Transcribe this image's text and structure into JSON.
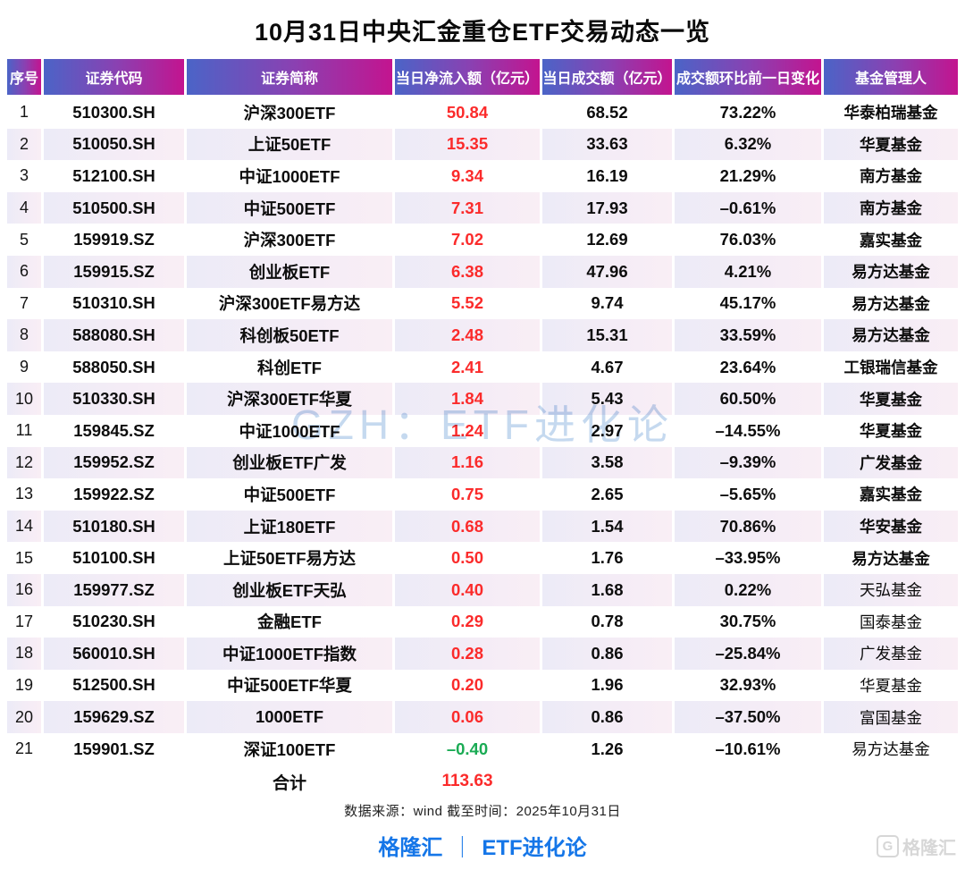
{
  "title": "10月31日中央汇金重仓ETF交易动态一览",
  "watermark_text": "GZH：ETF进化论",
  "source_note": "数据来源：wind 截至时间：2025年10月31日",
  "footer": {
    "left_brand": "格隆汇",
    "divider": "｜",
    "right_brand": "ETF进化论"
  },
  "corner_logo": {
    "icon": "G",
    "text": "格隆汇"
  },
  "colors": {
    "inflow_positive": "#fb2b2b",
    "inflow_negative": "#1aab54",
    "header_gradient_left": "#4b64c7",
    "header_gradient_mid": "#8a41b2",
    "header_gradient_right": "#c3148f",
    "footer_blue": "#1576e8"
  },
  "chart_data": {
    "type": "table",
    "title": "10月31日中央汇金重仓ETF交易动态一览",
    "columns": [
      "序号",
      "证券代码",
      "证券简称",
      "当日净流入额（亿元）",
      "当日成交额（亿元）",
      "成交额环比前一日变化",
      "基金管理人"
    ],
    "rows": [
      {
        "no": "1",
        "code": "510300.SH",
        "name": "沪深300ETF",
        "net_inflow": "50.84",
        "turnover": "68.52",
        "change": "73.22%",
        "manager": "华泰柏瑞基金",
        "inflow_negative": false,
        "manager_bold": true
      },
      {
        "no": "2",
        "code": "510050.SH",
        "name": "上证50ETF",
        "net_inflow": "15.35",
        "turnover": "33.63",
        "change": "6.32%",
        "manager": "华夏基金",
        "inflow_negative": false,
        "manager_bold": true
      },
      {
        "no": "3",
        "code": "512100.SH",
        "name": "中证1000ETF",
        "net_inflow": "9.34",
        "turnover": "16.19",
        "change": "21.29%",
        "manager": "南方基金",
        "inflow_negative": false,
        "manager_bold": true
      },
      {
        "no": "4",
        "code": "510500.SH",
        "name": "中证500ETF",
        "net_inflow": "7.31",
        "turnover": "17.93",
        "change": "–0.61%",
        "manager": "南方基金",
        "inflow_negative": false,
        "manager_bold": true
      },
      {
        "no": "5",
        "code": "159919.SZ",
        "name": "沪深300ETF",
        "net_inflow": "7.02",
        "turnover": "12.69",
        "change": "76.03%",
        "manager": "嘉实基金",
        "inflow_negative": false,
        "manager_bold": true
      },
      {
        "no": "6",
        "code": "159915.SZ",
        "name": "创业板ETF",
        "net_inflow": "6.38",
        "turnover": "47.96",
        "change": "4.21%",
        "manager": "易方达基金",
        "inflow_negative": false,
        "manager_bold": true
      },
      {
        "no": "7",
        "code": "510310.SH",
        "name": "沪深300ETF易方达",
        "net_inflow": "5.52",
        "turnover": "9.74",
        "change": "45.17%",
        "manager": "易方达基金",
        "inflow_negative": false,
        "manager_bold": true
      },
      {
        "no": "8",
        "code": "588080.SH",
        "name": "科创板50ETF",
        "net_inflow": "2.48",
        "turnover": "15.31",
        "change": "33.59%",
        "manager": "易方达基金",
        "inflow_negative": false,
        "manager_bold": true
      },
      {
        "no": "9",
        "code": "588050.SH",
        "name": "科创ETF",
        "net_inflow": "2.41",
        "turnover": "4.67",
        "change": "23.64%",
        "manager": "工银瑞信基金",
        "inflow_negative": false,
        "manager_bold": true
      },
      {
        "no": "10",
        "code": "510330.SH",
        "name": "沪深300ETF华夏",
        "net_inflow": "1.84",
        "turnover": "5.43",
        "change": "60.50%",
        "manager": "华夏基金",
        "inflow_negative": false,
        "manager_bold": true
      },
      {
        "no": "11",
        "code": "159845.SZ",
        "name": "中证1000ETF",
        "net_inflow": "1.24",
        "turnover": "2.97",
        "change": "–14.55%",
        "manager": "华夏基金",
        "inflow_negative": false,
        "manager_bold": true
      },
      {
        "no": "12",
        "code": "159952.SZ",
        "name": "创业板ETF广发",
        "net_inflow": "1.16",
        "turnover": "3.58",
        "change": "–9.39%",
        "manager": "广发基金",
        "inflow_negative": false,
        "manager_bold": true
      },
      {
        "no": "13",
        "code": "159922.SZ",
        "name": "中证500ETF",
        "net_inflow": "0.75",
        "turnover": "2.65",
        "change": "–5.65%",
        "manager": "嘉实基金",
        "inflow_negative": false,
        "manager_bold": true
      },
      {
        "no": "14",
        "code": "510180.SH",
        "name": "上证180ETF",
        "net_inflow": "0.68",
        "turnover": "1.54",
        "change": "70.86%",
        "manager": "华安基金",
        "inflow_negative": false,
        "manager_bold": true
      },
      {
        "no": "15",
        "code": "510100.SH",
        "name": "上证50ETF易方达",
        "net_inflow": "0.50",
        "turnover": "1.76",
        "change": "–33.95%",
        "manager": "易方达基金",
        "inflow_negative": false,
        "manager_bold": true
      },
      {
        "no": "16",
        "code": "159977.SZ",
        "name": "创业板ETF天弘",
        "net_inflow": "0.40",
        "turnover": "1.68",
        "change": "0.22%",
        "manager": "天弘基金",
        "inflow_negative": false,
        "manager_bold": false
      },
      {
        "no": "17",
        "code": "510230.SH",
        "name": "金融ETF",
        "net_inflow": "0.29",
        "turnover": "0.78",
        "change": "30.75%",
        "manager": "国泰基金",
        "inflow_negative": false,
        "manager_bold": false
      },
      {
        "no": "18",
        "code": "560010.SH",
        "name": "中证1000ETF指数",
        "net_inflow": "0.28",
        "turnover": "0.86",
        "change": "–25.84%",
        "manager": "广发基金",
        "inflow_negative": false,
        "manager_bold": false
      },
      {
        "no": "19",
        "code": "512500.SH",
        "name": "中证500ETF华夏",
        "net_inflow": "0.20",
        "turnover": "1.96",
        "change": "32.93%",
        "manager": "华夏基金",
        "inflow_negative": false,
        "manager_bold": false
      },
      {
        "no": "20",
        "code": "159629.SZ",
        "name": "1000ETF",
        "net_inflow": "0.06",
        "turnover": "0.86",
        "change": "–37.50%",
        "manager": "富国基金",
        "inflow_negative": false,
        "manager_bold": false
      },
      {
        "no": "21",
        "code": "159901.SZ",
        "name": "深证100ETF",
        "net_inflow": "–0.40",
        "turnover": "1.26",
        "change": "–10.61%",
        "manager": "易方达基金",
        "inflow_negative": true,
        "manager_bold": false
      }
    ],
    "total": {
      "label": "合计",
      "net_inflow": "113.63"
    }
  }
}
